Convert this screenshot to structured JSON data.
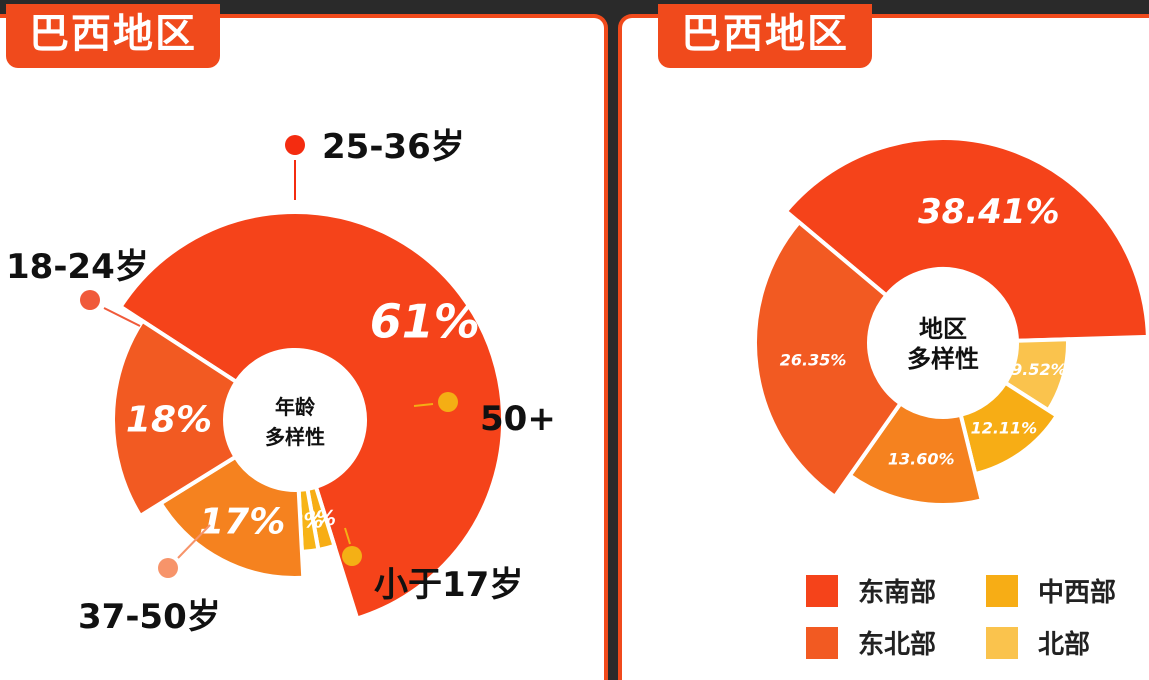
{
  "panels": {
    "left": {
      "title": "巴西地区"
    },
    "right": {
      "title": "巴西地区"
    }
  },
  "colors": {
    "accent": "#f04a1c",
    "red": "#f5431a",
    "redorange": "#f25a22",
    "orange": "#f5821f",
    "amber": "#f7ad15",
    "light": "#fac34d"
  },
  "chart_data": [
    {
      "type": "pie",
      "variant": "rose-donut",
      "center_label": [
        "年龄",
        "多样性"
      ],
      "slices": [
        {
          "label": "25-36岁",
          "value": 61,
          "value_text": "61%",
          "color": "#f5431a"
        },
        {
          "label": "50+",
          "value": 2,
          "value_text": "2%",
          "color": "#f7ad15"
        },
        {
          "label": "小于17岁",
          "value": 2,
          "value_text": "2%",
          "color": "#f7b417"
        },
        {
          "label": "37-50岁",
          "value": 17,
          "value_text": "17%",
          "color": "#f5821f"
        },
        {
          "label": "18-24岁",
          "value": 18,
          "value_text": "18%",
          "color": "#f25a22"
        }
      ]
    },
    {
      "type": "pie",
      "variant": "rose-donut",
      "center_label": [
        "地区",
        "多样性"
      ],
      "slices": [
        {
          "label": "东南部",
          "value": 38.41,
          "value_text": "38.41%",
          "color": "#f5431a"
        },
        {
          "label": "北部",
          "value": 9.52,
          "value_text": "9.52%",
          "color": "#fac34d"
        },
        {
          "label": "中西部",
          "value": 12.11,
          "value_text": "12.11%",
          "color": "#f7ad15"
        },
        {
          "label": "",
          "value": 13.6,
          "value_text": "13.60%",
          "color": "#f5821f"
        },
        {
          "label": "东北部",
          "value": 26.35,
          "value_text": "26.35%",
          "color": "#f25a22"
        }
      ],
      "legend": [
        "东南部",
        "中西部",
        "东北部",
        "北部"
      ]
    }
  ]
}
